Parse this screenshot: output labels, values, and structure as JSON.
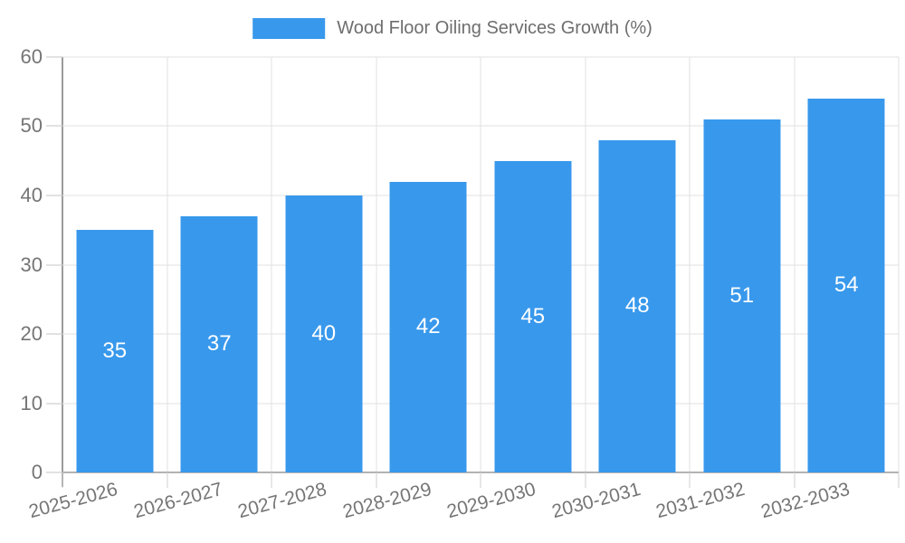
{
  "legend": {
    "label": "Wood Floor Oiling Services Growth (%)",
    "swatch_color": "#3898ec"
  },
  "chart_data": {
    "type": "bar",
    "title": "Wood Floor Oiling Services Growth (%)",
    "xlabel": "",
    "ylabel": "",
    "categories": [
      "2025-2026",
      "2026-2027",
      "2027-2028",
      "2028-2029",
      "2029-2030",
      "2030-2031",
      "2031-2032",
      "2032-2033"
    ],
    "series": [
      {
        "name": "Wood Floor Oiling Services Growth (%)",
        "values": [
          35,
          37,
          40,
          42,
          45,
          48,
          51,
          54
        ]
      }
    ],
    "value_labels_shown": true,
    "ylim": [
      0,
      60
    ],
    "yticks": [
      0,
      10,
      20,
      30,
      40,
      50,
      60
    ],
    "grid": "on",
    "legend_position": "top-center",
    "bar_color": "#3898ec",
    "value_label_color": "#ffffff",
    "axis_text_color": "#757575",
    "legend_text_color": "#6e6e6e",
    "gridline_color": "#e0e0e0",
    "zero_line_color": "#b3b3b3",
    "x_label_rotation_deg": -15
  }
}
